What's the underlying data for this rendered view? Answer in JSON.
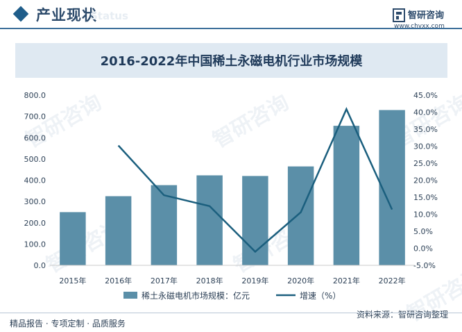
{
  "header": {
    "section_title": "产业现状",
    "watermark": "Status",
    "brand_name": "智研咨询",
    "brand_url": "www.chyxx.com"
  },
  "footer": {
    "left": "精品报告 · 专项定制 · 品质服务",
    "source": "资料来源：智研咨询整理"
  },
  "colors": {
    "bar": "#5b8fa8",
    "line": "#1b5f7e",
    "title_band": "#dfe9f2"
  },
  "chart_data": {
    "type": "bar",
    "title": "2016-2022年中国稀土永磁电机行业市场规模",
    "categories": [
      "2015年",
      "2016年",
      "2017年",
      "2018年",
      "2019年",
      "2020年",
      "2021年",
      "2022年"
    ],
    "series": [
      {
        "name": "稀土永磁电机市场规模：亿元",
        "type": "bar",
        "axis": "left",
        "values": [
          250,
          325,
          377,
          423,
          420,
          465,
          656,
          730
        ]
      },
      {
        "name": "增速（%）",
        "type": "line",
        "axis": "right",
        "values": [
          null,
          30.2,
          15.6,
          12.4,
          -1.0,
          10.6,
          40.9,
          11.4
        ]
      }
    ],
    "y_left": {
      "min": 0,
      "max": 800,
      "step": 100,
      "ticks": [
        "0.0",
        "100.0",
        "200.0",
        "300.0",
        "400.0",
        "500.0",
        "600.0",
        "700.0",
        "800.0"
      ]
    },
    "y_right": {
      "min": -5,
      "max": 45,
      "step": 5,
      "ticks": [
        "-5.0%",
        "0.0%",
        "5.0%",
        "10.0%",
        "15.0%",
        "20.0%",
        "25.0%",
        "30.0%",
        "35.0%",
        "40.0%",
        "45.0%"
      ]
    },
    "grid": false,
    "legend_position": "bottom"
  }
}
